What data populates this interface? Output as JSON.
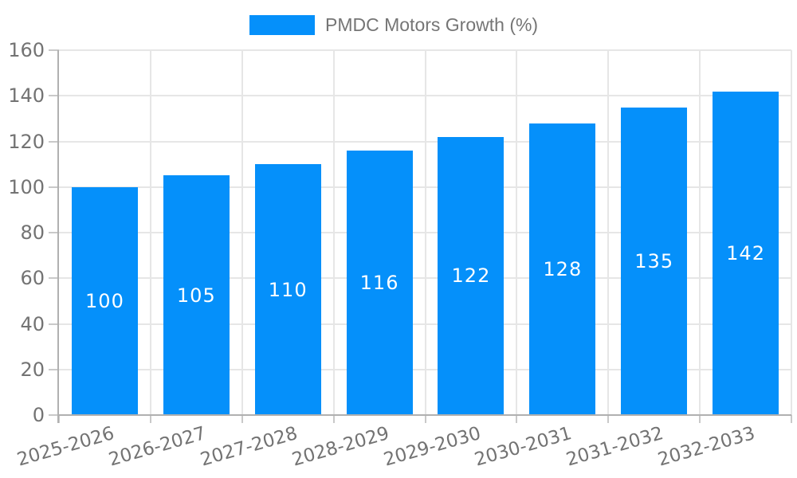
{
  "chart_data": {
    "type": "bar",
    "legend": "PMDC Motors Growth (%)",
    "legend_position": "top",
    "categories": [
      "2025-2026",
      "2026-2027",
      "2027-2028",
      "2028-2029",
      "2029-2030",
      "2030-2031",
      "2031-2032",
      "2032-2033"
    ],
    "values": [
      100,
      105,
      110,
      116,
      122,
      128,
      135,
      142
    ],
    "bar_value_labels": [
      "100",
      "105",
      "110",
      "116",
      "122",
      "128",
      "135",
      "142"
    ],
    "xlabel": "",
    "ylabel": "",
    "ylim": [
      0,
      160
    ],
    "ytick_step": 20,
    "yticks": [
      0,
      20,
      40,
      60,
      80,
      100,
      120,
      140,
      160
    ],
    "grid": true,
    "x_label_rotation_deg": -16,
    "colors": {
      "bar": "#0590fa",
      "bar_value_text": "#ffffff",
      "legend_text": "#757575",
      "tick_label_text": "#737373",
      "gridline": "#e6e6e6",
      "axis_line": "#b0b0b0",
      "tick_mark": "#c9c9c9",
      "background": "#ffffff"
    }
  }
}
